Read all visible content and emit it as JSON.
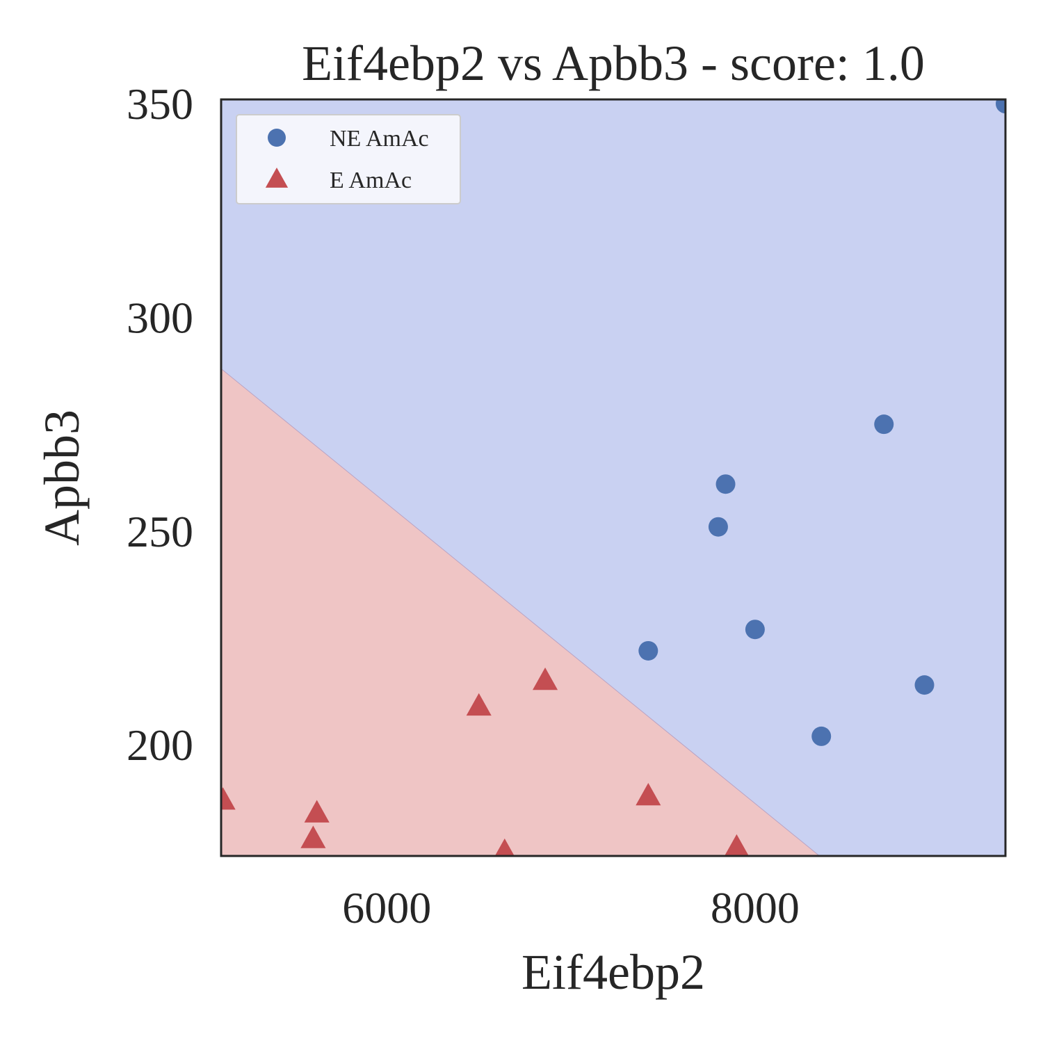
{
  "chart_data": {
    "type": "scatter",
    "title": "Eif4ebp2 vs Apbb3 - score: 1.0",
    "xlabel": "Eif4ebp2",
    "ylabel": "Apbb3",
    "xlim": [
      5100,
      9360
    ],
    "ylim": [
      174,
      351
    ],
    "xticks": [
      6000,
      8000
    ],
    "xtick_labels": [
      "6000",
      "8000"
    ],
    "yticks": [
      200,
      250,
      300,
      350
    ],
    "ytick_labels": [
      "200",
      "250",
      "300",
      "350"
    ],
    "grid": false,
    "legend_position": "top-left",
    "decision_regions": {
      "boundary": [
        [
          5100,
          288
        ],
        [
          8350,
          174
        ]
      ],
      "upper_region_color": "#c9d1f2",
      "lower_region_color": "#efc5c5"
    },
    "series": [
      {
        "name": "NE AmAc",
        "marker": "circle",
        "color": "#4c72b0",
        "points": [
          [
            9360,
            350
          ],
          [
            8700,
            275
          ],
          [
            7840,
            261
          ],
          [
            7800,
            251
          ],
          [
            8000,
            227
          ],
          [
            7420,
            222
          ],
          [
            8920,
            214
          ],
          [
            8360,
            202
          ]
        ]
      },
      {
        "name": "E AmAc",
        "marker": "triangle",
        "color": "#c44e52",
        "points": [
          [
            6860,
            215
          ],
          [
            6500,
            209
          ],
          [
            7420,
            188
          ],
          [
            5620,
            184
          ],
          [
            5110,
            187
          ],
          [
            5600,
            178
          ],
          [
            6640,
            175
          ],
          [
            7900,
            176
          ]
        ]
      }
    ]
  }
}
